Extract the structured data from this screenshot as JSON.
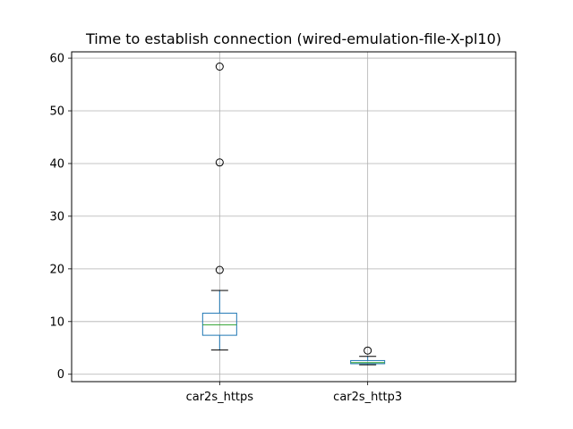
{
  "chart_data": {
    "type": "box",
    "title": "Time to establish connection (wired-emulation-file-X-pl10)",
    "categories": [
      "car2s_https",
      "car2s_http3"
    ],
    "ylim": [
      -1.4,
      61.2
    ],
    "yticks": [
      0,
      10,
      20,
      30,
      40,
      50,
      60
    ],
    "grid": true,
    "box_color": "#1f77b4",
    "median_color": "#2ca02c",
    "boxes": [
      {
        "category": "car2s_https",
        "whisker_low": 4.6,
        "q1": 7.4,
        "median": 9.4,
        "q3": 11.6,
        "whisker_high": 15.9,
        "outliers": [
          19.8,
          40.2,
          58.4
        ]
      },
      {
        "category": "car2s_http3",
        "whisker_low": 1.8,
        "q1": 2.0,
        "median": 2.2,
        "q3": 2.6,
        "whisker_high": 3.4,
        "outliers": [
          4.5
        ]
      }
    ]
  }
}
